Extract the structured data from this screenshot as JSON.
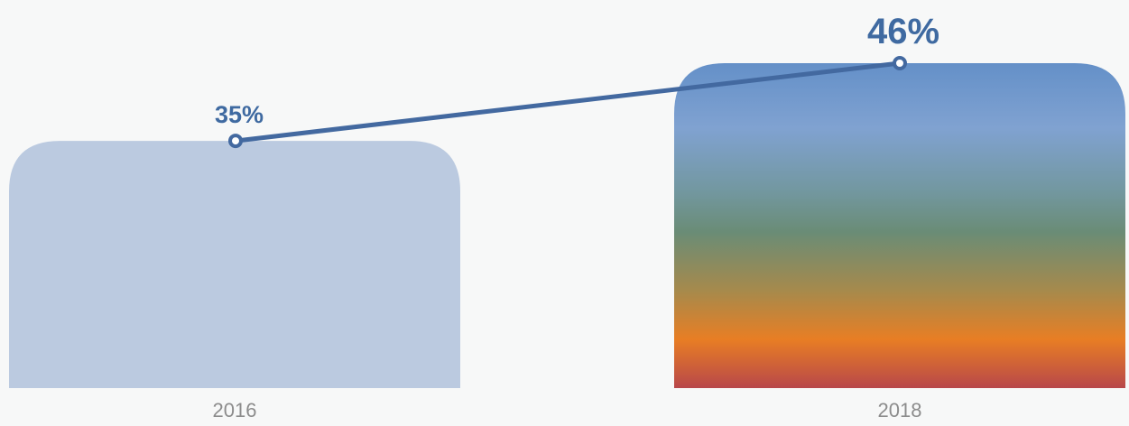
{
  "chart_data": {
    "type": "bar",
    "categories": [
      "2016",
      "2018"
    ],
    "values": [
      35,
      46
    ],
    "data_labels": [
      "35%",
      "46%"
    ],
    "ylim": [
      0,
      46
    ],
    "grid": false,
    "legend": "none",
    "overlay": "line connecting bar tops with circular markers",
    "colors": {
      "background": "#f7f8f8",
      "bar_2016": "#bbcae0",
      "bar_2018_gradient": [
        "#6490c8",
        "#80a2d1",
        "#72979e",
        "#6a8c76",
        "#a68a4c",
        "#e87e24",
        "#b8474a"
      ],
      "line": "#4369a0",
      "label": "#3f6aa1",
      "tick": "#8c8c8c"
    }
  }
}
